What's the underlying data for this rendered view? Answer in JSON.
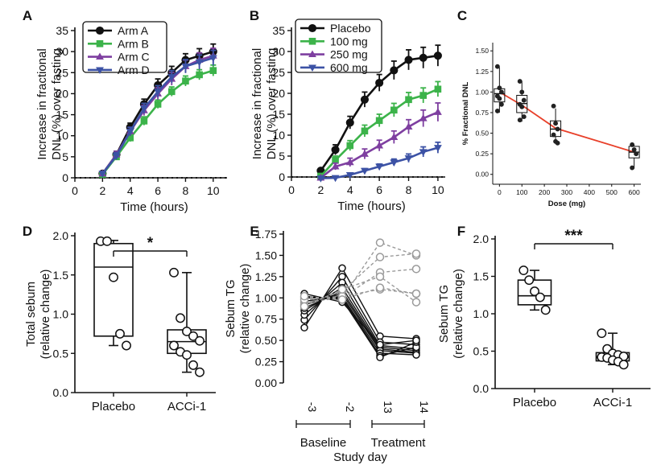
{
  "colors": {
    "black": "#111111",
    "green": "#3cb34a",
    "purple": "#7e3fa0",
    "blue": "#3c52a5",
    "red": "#e8402a",
    "grey": "#9a9a9a"
  },
  "chart_data": [
    {
      "panel": "A",
      "type": "line",
      "xlabel": "Time (hours)",
      "ylabel": [
        "Increase in fractional",
        "DNL (%) over fasting"
      ],
      "xlim": [
        0,
        11
      ],
      "ylim": [
        0,
        35
      ],
      "xticks": [
        "0",
        "2",
        "4",
        "6",
        "8",
        "10"
      ],
      "yticks": [
        "0",
        "5",
        "10",
        "15",
        "20",
        "25",
        "30",
        "35"
      ],
      "legend": "top-left",
      "x": [
        2,
        3,
        4,
        5,
        6,
        7,
        8,
        9,
        10
      ],
      "series": [
        {
          "name": "Arm A",
          "marker": "circle",
          "color": "#111111",
          "values": [
            1.0,
            5.5,
            12,
            17.5,
            22,
            25,
            28,
            29,
            30
          ],
          "err": [
            0.5,
            0.8,
            1,
            1.2,
            1.5,
            1.5,
            1.5,
            1.7,
            1.8
          ]
        },
        {
          "name": "Arm B",
          "marker": "square",
          "color": "#3cb34a",
          "values": [
            0.8,
            5,
            9.5,
            13.5,
            17.5,
            20.5,
            23,
            24.5,
            25.5
          ],
          "err": [
            0.5,
            0.7,
            0.9,
            1,
            1,
            1.1,
            1.2,
            1.2,
            1.3
          ]
        },
        {
          "name": "Arm C",
          "marker": "triangle-up",
          "color": "#7e3fa0",
          "values": [
            1.0,
            5.5,
            11,
            16,
            20,
            23.5,
            26.5,
            28,
            29
          ],
          "err": [
            0.5,
            0.8,
            1,
            1.2,
            1.4,
            1.5,
            1.5,
            1.7,
            1.8
          ]
        },
        {
          "name": "Arm D",
          "marker": "triangle-down",
          "color": "#3c52a5",
          "values": [
            1.0,
            5.2,
            11,
            16.5,
            20.5,
            24,
            26.5,
            27.5,
            28.5
          ],
          "err": [
            0.5,
            0.8,
            1,
            1.2,
            1.4,
            1.5,
            1.6,
            1.7,
            1.8
          ]
        }
      ]
    },
    {
      "panel": "B",
      "type": "line",
      "xlabel": "Time (hours)",
      "ylabel": [
        "Increase in fractional",
        "DNL (%) over fasting"
      ],
      "xlim": [
        0,
        10.5
      ],
      "ylim": [
        0,
        35
      ],
      "xticks": [
        "0",
        "2",
        "4",
        "6",
        "8",
        "10"
      ],
      "yticks": [
        "0",
        "5",
        "10",
        "15",
        "20",
        "25",
        "30",
        "35"
      ],
      "legend": "top-left",
      "x": [
        2,
        3,
        4,
        5,
        6,
        7,
        8,
        9,
        10
      ],
      "series": [
        {
          "name": "Placebo",
          "marker": "circle",
          "color": "#111111",
          "values": [
            1.5,
            6.5,
            13,
            18.5,
            22.5,
            25.5,
            28,
            28.5,
            29
          ],
          "err": [
            0.5,
            1.2,
            1.5,
            1.8,
            2,
            2.2,
            2.4,
            2.5,
            2.5
          ]
        },
        {
          "name": "100 mg",
          "marker": "square",
          "color": "#3cb34a",
          "values": [
            0.2,
            4,
            7.5,
            11,
            13.5,
            16,
            18.5,
            19.5,
            21
          ],
          "err": [
            0.3,
            1,
            1.2,
            1.4,
            1.5,
            1.6,
            1.7,
            1.8,
            1.8
          ]
        },
        {
          "name": "250 mg",
          "marker": "triangle-up",
          "color": "#7e3fa0",
          "values": [
            -0.2,
            2.5,
            3.5,
            5.5,
            7.5,
            9.5,
            12,
            14,
            15.5
          ],
          "err": [
            0.2,
            0.8,
            1,
            1.2,
            1.3,
            1.5,
            1.7,
            2,
            2.2
          ]
        },
        {
          "name": "600 mg",
          "marker": "triangle-down",
          "color": "#3c52a5",
          "values": [
            -0.3,
            -0.2,
            0.5,
            1.5,
            2.5,
            3.5,
            4.5,
            6,
            7
          ],
          "err": [
            0.2,
            0.2,
            0.3,
            0.5,
            0.6,
            0.8,
            1,
            1.2,
            1.3
          ]
        }
      ]
    },
    {
      "panel": "C",
      "type": "box",
      "xlabel": "Dose (mg)",
      "ylabel": "% Fractional DNL",
      "xlim": [
        -30,
        630
      ],
      "ylim": [
        -0.12,
        1.6
      ],
      "xticks": [
        "0",
        "100",
        "200",
        "300",
        "400",
        "500",
        "600"
      ],
      "yticks": [
        "0.00",
        "0.25",
        "0.50",
        "0.75",
        "1.00",
        "1.25",
        "1.50"
      ],
      "categories": [
        0,
        100,
        250,
        600
      ],
      "boxes": [
        {
          "q1": 0.88,
          "median": 0.98,
          "q3": 1.04,
          "min": 0.75,
          "max": 1.3
        },
        {
          "q1": 0.75,
          "median": 0.86,
          "q3": 0.96,
          "min": 0.64,
          "max": 1.13
        },
        {
          "q1": 0.46,
          "median": 0.55,
          "q3": 0.65,
          "min": 0.37,
          "max": 0.8
        },
        {
          "q1": 0.2,
          "median": 0.27,
          "q3": 0.34,
          "min": 0.07,
          "max": 0.36
        }
      ],
      "points": [
        [
          1.31,
          1.05,
          1.0,
          0.95,
          0.92,
          0.85,
          0.77
        ],
        [
          1.13,
          1.0,
          0.9,
          0.85,
          0.82,
          0.7,
          0.66
        ],
        [
          0.83,
          0.62,
          0.55,
          0.48,
          0.4,
          0.38
        ],
        [
          0.36,
          0.3,
          0.25,
          0.08
        ]
      ],
      "fit_line": [
        [
          0,
          1.0
        ],
        [
          100,
          0.84
        ],
        [
          250,
          0.56
        ],
        [
          600,
          0.27
        ]
      ]
    },
    {
      "panel": "D",
      "type": "box",
      "ylabel": [
        "Total sebum",
        "(relative change)"
      ],
      "ylim": [
        0,
        2.0
      ],
      "yticks": [
        "0.0",
        "0.5",
        "1.0",
        "1.5",
        "2.0"
      ],
      "categories": [
        "Placebo",
        "ACCi-1"
      ],
      "boxes": [
        {
          "q1": 0.72,
          "median": 1.6,
          "q3": 1.9,
          "min": 0.6,
          "max": 1.94
        },
        {
          "q1": 0.5,
          "median": 0.65,
          "q3": 0.8,
          "min": 0.26,
          "max": 1.53
        }
      ],
      "points": [
        [
          1.93,
          1.93,
          1.47,
          0.75,
          0.6
        ],
        [
          1.53,
          0.95,
          0.78,
          0.72,
          0.66,
          0.6,
          0.52,
          0.48,
          0.35,
          0.26
        ]
      ],
      "significance": "*"
    },
    {
      "panel": "E",
      "type": "line",
      "ylabel": [
        "Sebum TG",
        "(relative change)"
      ],
      "xlabel": "Study day",
      "ylim": [
        0,
        1.75
      ],
      "yticks": [
        "0.00",
        "0.25",
        "0.50",
        "0.75",
        "1.00",
        "1.25",
        "1.50",
        "1.75"
      ],
      "categories": [
        "-3",
        "-2",
        "13",
        "14"
      ],
      "groups": [
        "Baseline",
        "Treatment"
      ],
      "placebo": [
        [
          0.95,
          1.0,
          1.65,
          1.5
        ],
        [
          0.92,
          1.08,
          1.48,
          1.52
        ],
        [
          1.0,
          1.0,
          1.3,
          1.34
        ],
        [
          0.98,
          1.02,
          1.1,
          1.05
        ],
        [
          1.02,
          0.98,
          1.12,
          1.05
        ],
        [
          0.9,
          1.1,
          1.25,
          0.95
        ]
      ],
      "acci": [
        [
          0.65,
          1.35,
          0.55,
          0.52
        ],
        [
          0.74,
          1.25,
          0.48,
          0.45
        ],
        [
          0.8,
          1.18,
          0.44,
          0.4
        ],
        [
          0.85,
          1.12,
          0.42,
          0.38
        ],
        [
          0.88,
          1.08,
          0.4,
          0.36
        ],
        [
          0.92,
          1.05,
          0.38,
          0.35
        ],
        [
          0.96,
          1.02,
          0.35,
          0.33
        ],
        [
          1.0,
          1.0,
          0.32,
          0.42
        ],
        [
          1.02,
          0.98,
          0.3,
          0.48
        ],
        [
          1.05,
          0.95,
          0.45,
          0.5
        ]
      ]
    },
    {
      "panel": "F",
      "type": "box",
      "ylabel": [
        "Sebum TG",
        "(relative change)"
      ],
      "ylim": [
        0,
        2.0
      ],
      "yticks": [
        "0.0",
        "0.5",
        "1.0",
        "1.5",
        "2.0"
      ],
      "categories": [
        "Placebo",
        "ACCi-1"
      ],
      "boxes": [
        {
          "q1": 1.12,
          "median": 1.24,
          "q3": 1.45,
          "min": 1.05,
          "max": 1.58
        },
        {
          "q1": 0.37,
          "median": 0.42,
          "q3": 0.48,
          "min": 0.32,
          "max": 0.74
        }
      ],
      "points": [
        [
          1.58,
          1.45,
          1.3,
          1.22,
          1.05
        ],
        [
          0.74,
          0.53,
          0.47,
          0.45,
          0.43,
          0.42,
          0.41,
          0.38,
          0.36,
          0.32
        ]
      ],
      "significance": "***"
    }
  ]
}
